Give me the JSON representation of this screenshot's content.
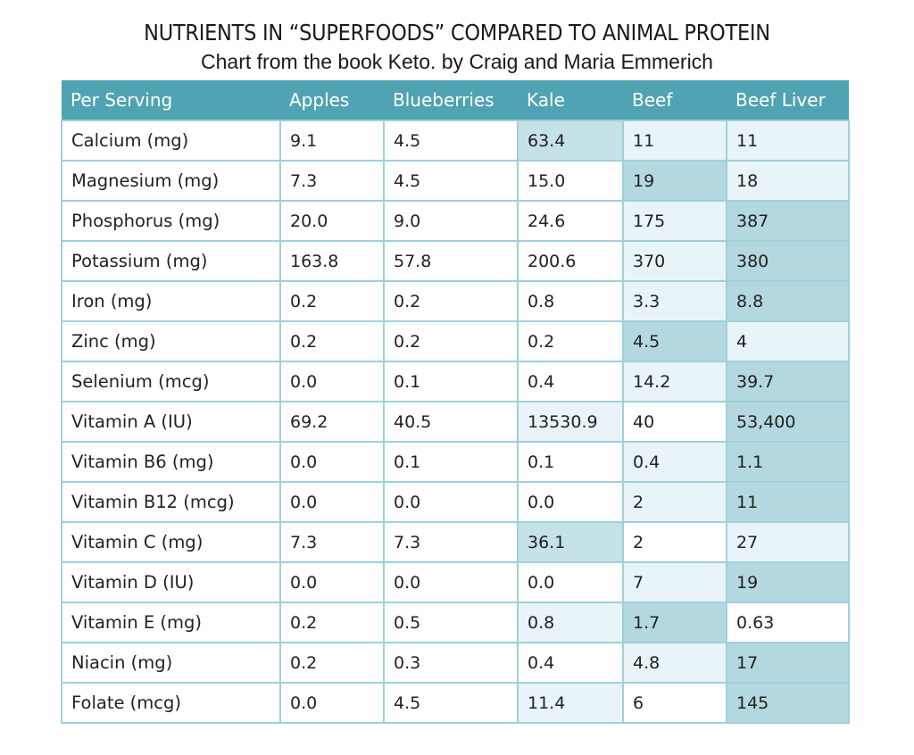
{
  "title": "NUTRIENTS IN “SUPERFOODS” COMPARED TO ANIMAL PROTEIN",
  "subtitle": "Chart from the book Keto. by Craig and Maria Emmerich",
  "colors": {
    "header_bg": "#4fa3b2",
    "header_text": "#ffffff",
    "grid": "#9fd0da",
    "highlight_medium": "#c5e2e7",
    "highlight_light": "#e8f4f7",
    "highlight_dark": "#b4d8df"
  },
  "chart_data": {
    "type": "table",
    "columns": [
      "Per Serving",
      "Apples",
      "Blueberries",
      "Kale",
      "Beef",
      "Beef Liver"
    ],
    "rows": [
      {
        "nutrient": "Calcium (mg)",
        "values": [
          "9.1",
          "4.5",
          "63.4",
          "11",
          "11"
        ],
        "shade": [
          "",
          "",
          "hi1",
          "hi2",
          "hi2"
        ]
      },
      {
        "nutrient": "Magnesium (mg)",
        "values": [
          "7.3",
          "4.5",
          "15.0",
          "19",
          "18"
        ],
        "shade": [
          "",
          "",
          "",
          "hi3",
          "hi2"
        ]
      },
      {
        "nutrient": "Phosphorus (mg)",
        "values": [
          "20.0",
          "9.0",
          "24.6",
          "175",
          "387"
        ],
        "shade": [
          "",
          "",
          "",
          "hi2",
          "hi3"
        ]
      },
      {
        "nutrient": "Potassium (mg)",
        "values": [
          "163.8",
          "57.8",
          "200.6",
          "370",
          "380"
        ],
        "shade": [
          "",
          "",
          "",
          "hi2",
          "hi3"
        ]
      },
      {
        "nutrient": "Iron (mg)",
        "values": [
          "0.2",
          "0.2",
          "0.8",
          "3.3",
          "8.8"
        ],
        "shade": [
          "",
          "",
          "",
          "hi2",
          "hi3"
        ]
      },
      {
        "nutrient": "Zinc (mg)",
        "values": [
          "0.2",
          "0.2",
          "0.2",
          "4.5",
          "4"
        ],
        "shade": [
          "",
          "",
          "",
          "hi3",
          "hi2"
        ]
      },
      {
        "nutrient": "Selenium (mcg)",
        "values": [
          "0.0",
          "0.1",
          "0.4",
          "14.2",
          "39.7"
        ],
        "shade": [
          "",
          "",
          "",
          "hi2",
          "hi3"
        ]
      },
      {
        "nutrient": "Vitamin A (IU)",
        "values": [
          "69.2",
          "40.5",
          "13530.9",
          "40",
          "53,400"
        ],
        "shade": [
          "",
          "",
          "hi2",
          "",
          "hi3"
        ]
      },
      {
        "nutrient": "Vitamin B6 (mg)",
        "values": [
          "0.0",
          "0.1",
          "0.1",
          "0.4",
          "1.1"
        ],
        "shade": [
          "",
          "",
          "",
          "hi2",
          "hi3"
        ]
      },
      {
        "nutrient": "Vitamin B12 (mcg)",
        "values": [
          "0.0",
          "0.0",
          "0.0",
          "2",
          "11"
        ],
        "shade": [
          "",
          "",
          "",
          "hi2",
          "hi3"
        ]
      },
      {
        "nutrient": "Vitamin C (mg)",
        "values": [
          "7.3",
          "7.3",
          "36.1",
          "2",
          "27"
        ],
        "shade": [
          "",
          "",
          "hi1",
          "",
          "hi2"
        ]
      },
      {
        "nutrient": "Vitamin D (IU)",
        "values": [
          "0.0",
          "0.0",
          "0.0",
          "7",
          "19"
        ],
        "shade": [
          "",
          "",
          "",
          "hi2",
          "hi3"
        ]
      },
      {
        "nutrient": "Vitamin E (mg)",
        "values": [
          "0.2",
          "0.5",
          "0.8",
          "1.7",
          "0.63"
        ],
        "shade": [
          "",
          "",
          "hi2",
          "hi3",
          ""
        ]
      },
      {
        "nutrient": "Niacin (mg)",
        "values": [
          "0.2",
          "0.3",
          "0.4",
          "4.8",
          "17"
        ],
        "shade": [
          "",
          "",
          "",
          "hi2",
          "hi3"
        ]
      },
      {
        "nutrient": "Folate (mcg)",
        "values": [
          "0.0",
          "4.5",
          "11.4",
          "6",
          "145"
        ],
        "shade": [
          "",
          "",
          "hi2",
          "",
          "hi3"
        ]
      }
    ]
  }
}
